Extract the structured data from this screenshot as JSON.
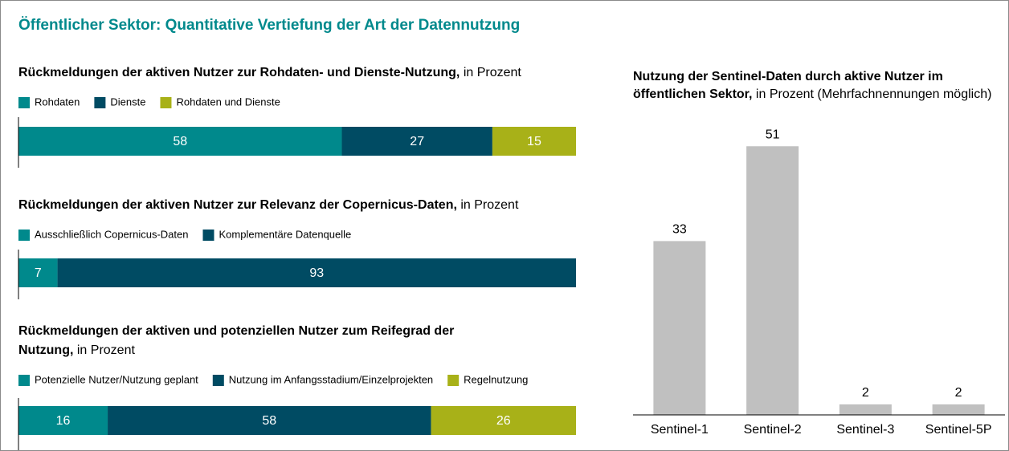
{
  "title": "Öffentlicher Sektor: Quantitative Vertiefung der Art der Datennutzung",
  "chart_data": [
    {
      "type": "stacked_bar",
      "title": "Rückmeldungen der aktiven Nutzer zur Rohdaten- und Dienste-Nutzung,",
      "subtitle": "in Prozent",
      "xlim": [
        0,
        100
      ],
      "series": [
        {
          "name": "Rohdaten",
          "color": "#00898c",
          "values": [
            58
          ]
        },
        {
          "name": "Dienste",
          "color": "#004b63",
          "values": [
            27
          ]
        },
        {
          "name": "Rohdaten und Dienste",
          "color": "#a8b118",
          "values": [
            15
          ]
        }
      ]
    },
    {
      "type": "stacked_bar",
      "title": "Rückmeldungen der aktiven Nutzer zur Relevanz der Copernicus-Daten,",
      "subtitle": "in Prozent",
      "xlim": [
        0,
        100
      ],
      "series": [
        {
          "name": "Ausschließlich Copernicus-Daten",
          "color": "#00898c",
          "values": [
            7
          ]
        },
        {
          "name": "Komplementäre Datenquelle",
          "color": "#004b63",
          "values": [
            93
          ]
        }
      ]
    },
    {
      "type": "stacked_bar",
      "title": "Rückmeldungen der aktiven und potenziellen Nutzer zum Reifegrad der Nutzung,",
      "subtitle": "in Prozent",
      "xlim": [
        0,
        100
      ],
      "series": [
        {
          "name": "Potenzielle Nutzer/Nutzung geplant",
          "color": "#00898c",
          "values": [
            16
          ]
        },
        {
          "name": "Nutzung im Anfangsstadium/Einzelprojekten",
          "color": "#004b63",
          "values": [
            58
          ]
        },
        {
          "name": "Regelnutzung",
          "color": "#a8b118",
          "values": [
            26
          ]
        }
      ]
    },
    {
      "type": "bar",
      "title": "Nutzung der Sentinel-Daten durch aktive Nutzer im öffentlichen Sektor,",
      "subtitle": "in Prozent (Mehrfachnennungen möglich)",
      "categories": [
        "Sentinel-1",
        "Sentinel-2",
        "Sentinel-3",
        "Sentinel-5P"
      ],
      "values": [
        33,
        51,
        2,
        2
      ],
      "color": "#c0c0c0",
      "ylim": [
        0,
        55
      ]
    }
  ]
}
